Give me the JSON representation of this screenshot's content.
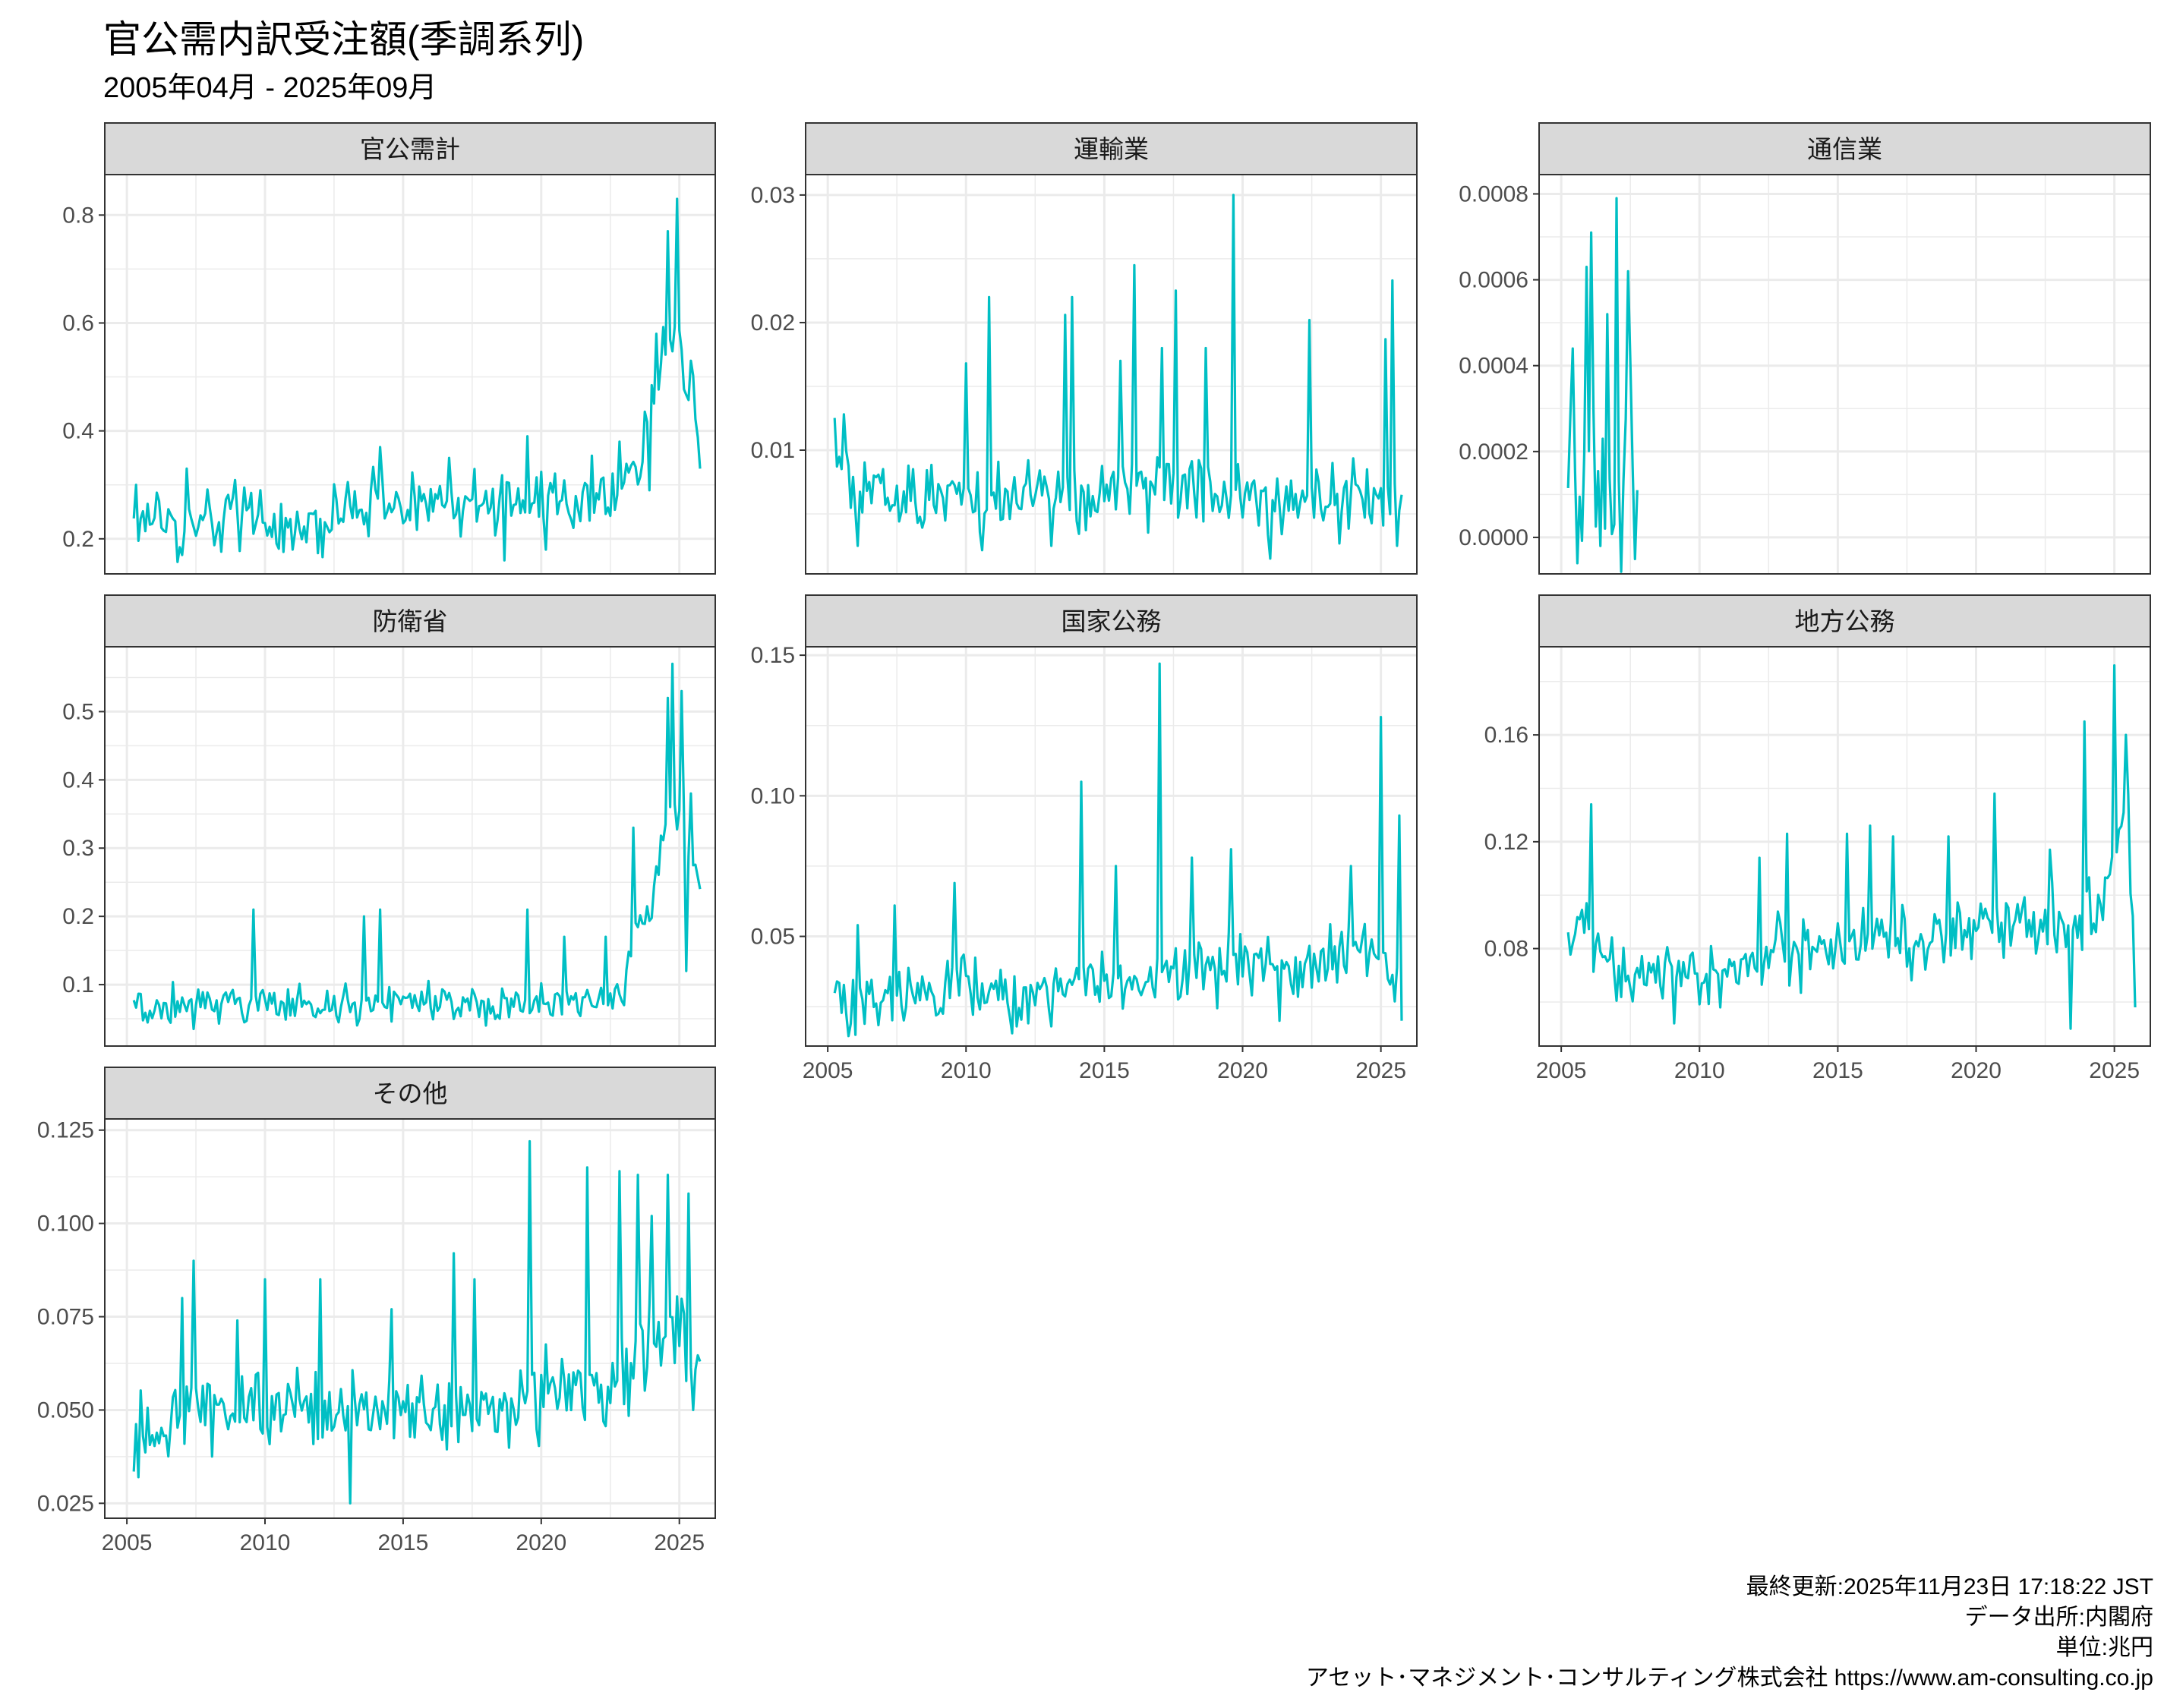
{
  "title": "官公需内訳受注額(季調系列)",
  "subtitle": "2005年04月 - 2025年09月",
  "captions": [
    "最終更新:2025年11月23日 17:18:22 JST",
    "データ出所:内閣府",
    "単位:兆円",
    "アセット･マネジメント･コンサルティング株式会社 https://www.am-consulting.co.jp"
  ],
  "colors": {
    "series": "#00BFC4",
    "strip_bg": "#D9D9D9",
    "grid": "#EBEBEB",
    "panel_border": "#333333"
  },
  "chart_data": [
    {
      "type": "line",
      "panel": "官公需計",
      "x_range": [
        2005.25,
        2025.75
      ],
      "xlim": [
        2004.2,
        2026.3
      ],
      "ylim": [
        0.135,
        0.875
      ],
      "y_ticks": [
        "0.2",
        "0.4",
        "0.6",
        "0.8"
      ],
      "y_tick_values": [
        0.2,
        0.4,
        0.6,
        0.8
      ],
      "x_ticks_shown": false,
      "anchors": [
        [
          2005.25,
          0.23
        ],
        [
          2006.0,
          0.25
        ],
        [
          2007.0,
          0.22
        ],
        [
          2008.0,
          0.24
        ],
        [
          2009.5,
          0.23
        ],
        [
          2010.5,
          0.22
        ],
        [
          2011.5,
          0.22
        ],
        [
          2012.5,
          0.25
        ],
        [
          2013.5,
          0.27
        ],
        [
          2014.5,
          0.27
        ],
        [
          2015.5,
          0.26
        ],
        [
          2016.5,
          0.26
        ],
        [
          2017.5,
          0.27
        ],
        [
          2018.5,
          0.27
        ],
        [
          2019.5,
          0.27
        ],
        [
          2020.5,
          0.26
        ],
        [
          2021.5,
          0.28
        ],
        [
          2022.5,
          0.28
        ],
        [
          2023.5,
          0.33
        ],
        [
          2024.0,
          0.45
        ],
        [
          2024.5,
          0.55
        ],
        [
          2025.0,
          0.55
        ],
        [
          2025.5,
          0.45
        ],
        [
          2025.75,
          0.33
        ]
      ],
      "peaks": [
        [
          2007.2,
          0.33
        ],
        [
          2009.8,
          0.29
        ],
        [
          2014.2,
          0.37
        ],
        [
          2016.7,
          0.35
        ],
        [
          2019.5,
          0.39
        ],
        [
          2022.8,
          0.38
        ],
        [
          2024.2,
          0.58
        ],
        [
          2024.55,
          0.77
        ],
        [
          2024.95,
          0.83
        ],
        [
          2025.4,
          0.53
        ]
      ],
      "troughs": [
        [
          2007.0,
          0.17
        ],
        [
          2011.0,
          0.18
        ],
        [
          2018.7,
          0.16
        ],
        [
          2020.2,
          0.18
        ],
        [
          2023.9,
          0.29
        ]
      ],
      "end_value": 0.33,
      "noise": 0.028,
      "seed": 1
    },
    {
      "type": "line",
      "panel": "運輸業",
      "x_range": [
        2005.25,
        2025.75
      ],
      "xlim": [
        2004.2,
        2026.3
      ],
      "ylim": [
        0.0003,
        0.0316
      ],
      "y_ticks": [
        "0.01",
        "0.02",
        "0.03"
      ],
      "y_tick_values": [
        0.01,
        0.02,
        0.03
      ],
      "x_ticks_shown": false,
      "anchors": [
        [
          2005.25,
          0.0098
        ],
        [
          2006.0,
          0.007
        ],
        [
          2007.0,
          0.006
        ],
        [
          2008.0,
          0.006
        ],
        [
          2009.0,
          0.0065
        ],
        [
          2010.0,
          0.006
        ],
        [
          2011.0,
          0.0055
        ],
        [
          2012.0,
          0.006
        ],
        [
          2013.0,
          0.0065
        ],
        [
          2014.0,
          0.0065
        ],
        [
          2015.0,
          0.006
        ],
        [
          2016.0,
          0.007
        ],
        [
          2017.0,
          0.0075
        ],
        [
          2018.0,
          0.007
        ],
        [
          2019.0,
          0.007
        ],
        [
          2020.0,
          0.0065
        ],
        [
          2021.0,
          0.006
        ],
        [
          2022.0,
          0.006
        ],
        [
          2023.0,
          0.006
        ],
        [
          2024.0,
          0.006
        ],
        [
          2025.0,
          0.0065
        ],
        [
          2025.75,
          0.0065
        ]
      ],
      "peaks": [
        [
          2005.6,
          0.0128
        ],
        [
          2010.0,
          0.0168
        ],
        [
          2010.8,
          0.022
        ],
        [
          2013.6,
          0.0206
        ],
        [
          2013.8,
          0.022
        ],
        [
          2015.6,
          0.017
        ],
        [
          2016.1,
          0.0245
        ],
        [
          2017.1,
          0.018
        ],
        [
          2017.6,
          0.0225
        ],
        [
          2018.7,
          0.018
        ],
        [
          2019.7,
          0.03
        ],
        [
          2022.4,
          0.0202
        ],
        [
          2025.2,
          0.0187
        ],
        [
          2025.45,
          0.0233
        ]
      ],
      "troughs": [
        [
          2006.1,
          0.0025
        ],
        [
          2013.1,
          0.0025
        ],
        [
          2021.0,
          0.0015
        ],
        [
          2025.6,
          0.0025
        ]
      ],
      "end_value": 0.0065,
      "noise": 0.0016,
      "seed": 2
    },
    {
      "type": "line",
      "panel": "通信業",
      "x_range": [
        2005.25,
        2007.75
      ],
      "xlim": [
        2004.2,
        2026.3
      ],
      "ylim": [
        -8.5e-05,
        0.000845
      ],
      "y_ticks": [
        "0.0000",
        "0.0002",
        "0.0004",
        "0.0006",
        "0.0008"
      ],
      "y_tick_values": [
        0,
        0.0002,
        0.0004,
        0.0006,
        0.0008
      ],
      "x_ticks_shown": false,
      "anchors": [
        [
          2005.25,
          0.00022
        ],
        [
          2007.75,
          0.00011
        ]
      ],
      "peaks": [
        [
          2005.4,
          0.00044
        ],
        [
          2005.9,
          0.00063
        ],
        [
          2006.1,
          0.00071
        ],
        [
          2006.7,
          0.00052
        ],
        [
          2007.0,
          0.00079
        ],
        [
          2007.4,
          0.00062
        ]
      ],
      "troughs": [
        [
          2005.6,
          -6e-05
        ],
        [
          2006.4,
          -2e-05
        ],
        [
          2007.15,
          -8e-05
        ]
      ],
      "end_value": 0.00011,
      "noise": 0.00012,
      "seed": 3
    },
    {
      "type": "line",
      "panel": "防衛省",
      "x_range": [
        2005.25,
        2025.75
      ],
      "xlim": [
        2004.2,
        2026.3
      ],
      "ylim": [
        0.01,
        0.595
      ],
      "y_ticks": [
        "0.1",
        "0.2",
        "0.3",
        "0.4",
        "0.5"
      ],
      "y_tick_values": [
        0.1,
        0.2,
        0.3,
        0.4,
        0.5
      ],
      "x_ticks_shown": false,
      "anchors": [
        [
          2005.25,
          0.07
        ],
        [
          2008.0,
          0.07
        ],
        [
          2012.0,
          0.075
        ],
        [
          2016.0,
          0.075
        ],
        [
          2020.0,
          0.07
        ],
        [
          2023.0,
          0.08
        ],
        [
          2023.3,
          0.18
        ],
        [
          2024.0,
          0.2
        ],
        [
          2024.5,
          0.35
        ],
        [
          2025.0,
          0.35
        ],
        [
          2025.75,
          0.24
        ]
      ],
      "peaks": [
        [
          2009.6,
          0.21
        ],
        [
          2013.6,
          0.2
        ],
        [
          2014.2,
          0.21
        ],
        [
          2019.5,
          0.21
        ],
        [
          2020.8,
          0.17
        ],
        [
          2022.3,
          0.17
        ],
        [
          2023.3,
          0.33
        ],
        [
          2024.55,
          0.52
        ],
        [
          2024.75,
          0.57
        ],
        [
          2025.1,
          0.53
        ],
        [
          2025.4,
          0.38
        ]
      ],
      "troughs": [
        [
          2007.4,
          0.035
        ],
        [
          2018.0,
          0.04
        ],
        [
          2025.25,
          0.12
        ]
      ],
      "end_value": 0.24,
      "noise": 0.013,
      "seed": 4
    },
    {
      "type": "line",
      "panel": "国家公務",
      "x_range": [
        2005.25,
        2025.75
      ],
      "xlim": [
        2004.2,
        2026.3
      ],
      "ylim": [
        0.011,
        0.153
      ],
      "y_ticks": [
        "0.05",
        "0.10",
        "0.15"
      ],
      "y_tick_values": [
        0.05,
        0.1,
        0.15
      ],
      "x_ticks_shown": true,
      "x_ticks": [
        "2005",
        "2010",
        "2015",
        "2020",
        "2025"
      ],
      "x_tick_values": [
        2005,
        2010,
        2015,
        2020,
        2025
      ],
      "anchors": [
        [
          2005.25,
          0.03
        ],
        [
          2006.0,
          0.025
        ],
        [
          2007.0,
          0.03
        ],
        [
          2008.0,
          0.032
        ],
        [
          2009.0,
          0.03
        ],
        [
          2010.0,
          0.033
        ],
        [
          2011.0,
          0.03
        ],
        [
          2012.0,
          0.03
        ],
        [
          2013.0,
          0.033
        ],
        [
          2014.0,
          0.035
        ],
        [
          2015.0,
          0.035
        ],
        [
          2016.0,
          0.035
        ],
        [
          2017.0,
          0.037
        ],
        [
          2018.0,
          0.04
        ],
        [
          2019.0,
          0.04
        ],
        [
          2020.0,
          0.04
        ],
        [
          2021.0,
          0.04
        ],
        [
          2022.0,
          0.038
        ],
        [
          2023.0,
          0.04
        ],
        [
          2024.0,
          0.043
        ],
        [
          2025.0,
          0.045
        ],
        [
          2025.75,
          0.03
        ]
      ],
      "peaks": [
        [
          2006.1,
          0.054
        ],
        [
          2007.4,
          0.061
        ],
        [
          2009.6,
          0.069
        ],
        [
          2014.2,
          0.105
        ],
        [
          2015.4,
          0.075
        ],
        [
          2017.0,
          0.147
        ],
        [
          2018.2,
          0.078
        ],
        [
          2019.6,
          0.081
        ],
        [
          2023.9,
          0.075
        ],
        [
          2025.0,
          0.128
        ],
        [
          2025.65,
          0.093
        ]
      ],
      "troughs": [
        [
          2006.0,
          0.015
        ],
        [
          2011.8,
          0.018
        ],
        [
          2013.1,
          0.018
        ],
        [
          2021.3,
          0.02
        ],
        [
          2025.75,
          0.02
        ]
      ],
      "end_value": 0.02,
      "noise": 0.0055,
      "seed": 5
    },
    {
      "type": "line",
      "panel": "地方公務",
      "x_range": [
        2005.25,
        2025.75
      ],
      "xlim": [
        2004.2,
        2026.3
      ],
      "ylim": [
        0.0435,
        0.193
      ],
      "y_ticks": [
        "0.08",
        "0.12",
        "0.16"
      ],
      "y_tick_values": [
        0.08,
        0.12,
        0.16
      ],
      "x_ticks_shown": true,
      "x_ticks": [
        "2005",
        "2010",
        "2015",
        "2020",
        "2025"
      ],
      "x_tick_values": [
        2005,
        2010,
        2015,
        2020,
        2025
      ],
      "anchors": [
        [
          2005.25,
          0.077
        ],
        [
          2006.0,
          0.088
        ],
        [
          2006.5,
          0.075
        ],
        [
          2007.5,
          0.07
        ],
        [
          2008.5,
          0.07
        ],
        [
          2009.5,
          0.068
        ],
        [
          2010.5,
          0.068
        ],
        [
          2011.5,
          0.07
        ],
        [
          2012.5,
          0.078
        ],
        [
          2013.5,
          0.08
        ],
        [
          2014.5,
          0.082
        ],
        [
          2015.5,
          0.082
        ],
        [
          2016.5,
          0.085
        ],
        [
          2017.5,
          0.083
        ],
        [
          2018.5,
          0.082
        ],
        [
          2019.5,
          0.085
        ],
        [
          2020.5,
          0.088
        ],
        [
          2021.5,
          0.088
        ],
        [
          2022.5,
          0.09
        ],
        [
          2023.5,
          0.088
        ],
        [
          2024.5,
          0.095
        ],
        [
          2025.2,
          0.12
        ],
        [
          2025.5,
          0.13
        ],
        [
          2025.75,
          0.058
        ]
      ],
      "peaks": [
        [
          2005.9,
          0.097
        ],
        [
          2006.1,
          0.134
        ],
        [
          2012.2,
          0.114
        ],
        [
          2013.2,
          0.123
        ],
        [
          2015.3,
          0.123
        ],
        [
          2016.2,
          0.126
        ],
        [
          2017.0,
          0.122
        ],
        [
          2019.0,
          0.122
        ],
        [
          2020.7,
          0.138
        ],
        [
          2022.7,
          0.117
        ],
        [
          2023.9,
          0.165
        ],
        [
          2025.0,
          0.186
        ],
        [
          2025.4,
          0.16
        ]
      ],
      "troughs": [
        [
          2009.1,
          0.052
        ],
        [
          2023.4,
          0.05
        ],
        [
          2025.75,
          0.058
        ]
      ],
      "end_value": 0.058,
      "noise": 0.0065,
      "seed": 6
    },
    {
      "type": "line",
      "panel": "その他",
      "x_range": [
        2005.25,
        2025.75
      ],
      "xlim": [
        2004.2,
        2026.3
      ],
      "ylim": [
        0.021,
        0.128
      ],
      "y_ticks": [
        "0.025",
        "0.050",
        "0.075",
        "0.100",
        "0.125"
      ],
      "y_tick_values": [
        0.025,
        0.05,
        0.075,
        0.1,
        0.125
      ],
      "x_ticks_shown": true,
      "x_ticks": [
        "2005",
        "2010",
        "2015",
        "2020",
        "2025"
      ],
      "x_tick_values": [
        2005,
        2010,
        2015,
        2020,
        2025
      ],
      "anchors": [
        [
          2005.25,
          0.04
        ],
        [
          2006.0,
          0.045
        ],
        [
          2007.0,
          0.05
        ],
        [
          2008.0,
          0.052
        ],
        [
          2009.0,
          0.05
        ],
        [
          2010.0,
          0.05
        ],
        [
          2011.0,
          0.052
        ],
        [
          2012.0,
          0.05
        ],
        [
          2013.0,
          0.047
        ],
        [
          2014.0,
          0.05
        ],
        [
          2015.0,
          0.05
        ],
        [
          2016.0,
          0.048
        ],
        [
          2017.0,
          0.05
        ],
        [
          2018.0,
          0.05
        ],
        [
          2019.0,
          0.052
        ],
        [
          2020.0,
          0.055
        ],
        [
          2021.0,
          0.057
        ],
        [
          2022.0,
          0.058
        ],
        [
          2023.0,
          0.06
        ],
        [
          2024.0,
          0.07
        ],
        [
          2025.0,
          0.07
        ],
        [
          2025.75,
          0.063
        ]
      ],
      "peaks": [
        [
          2007.0,
          0.08
        ],
        [
          2007.4,
          0.09
        ],
        [
          2009.0,
          0.074
        ],
        [
          2010.0,
          0.085
        ],
        [
          2012.0,
          0.085
        ],
        [
          2014.6,
          0.077
        ],
        [
          2016.8,
          0.092
        ],
        [
          2017.6,
          0.085
        ],
        [
          2019.6,
          0.122
        ],
        [
          2021.7,
          0.115
        ],
        [
          2022.8,
          0.114
        ],
        [
          2023.5,
          0.113
        ],
        [
          2024.0,
          0.102
        ],
        [
          2024.6,
          0.113
        ],
        [
          2025.3,
          0.108
        ]
      ],
      "troughs": [
        [
          2005.4,
          0.032
        ],
        [
          2013.1,
          0.025
        ],
        [
          2025.5,
          0.05
        ]
      ],
      "end_value": 0.063,
      "noise": 0.0055,
      "seed": 7
    }
  ]
}
